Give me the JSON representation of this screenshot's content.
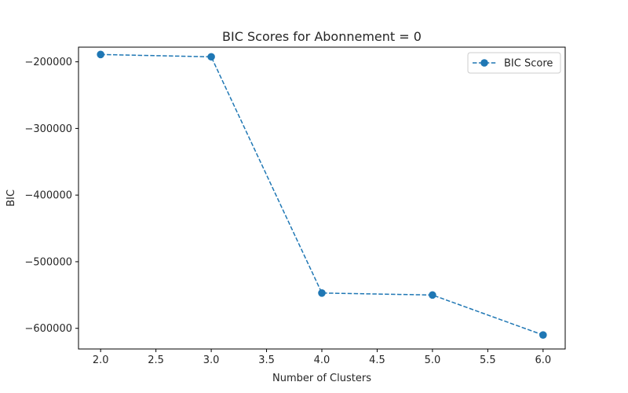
{
  "chart_data": {
    "type": "line",
    "title": "BIC Scores for Abonnement = 0",
    "xlabel": "Number of Clusters",
    "ylabel": "BIC",
    "x": [
      2.0,
      3.0,
      4.0,
      5.0,
      6.0
    ],
    "series": [
      {
        "name": "BIC Score",
        "values": [
          -189000,
          -192500,
          -547000,
          -550000,
          -610000
        ],
        "color": "#1f77b4",
        "line_style": "dashed",
        "marker": "circle"
      }
    ],
    "xlim": [
      1.8,
      6.2
    ],
    "ylim": [
      -631000,
      -178000
    ],
    "xticks": [
      2.0,
      2.5,
      3.0,
      3.5,
      4.0,
      4.5,
      5.0,
      5.5,
      6.0
    ],
    "xtick_labels": [
      "2.0",
      "2.5",
      "3.0",
      "3.5",
      "4.0",
      "4.5",
      "5.0",
      "5.5",
      "6.0"
    ],
    "yticks": [
      -200000,
      -300000,
      -400000,
      -500000,
      -600000
    ],
    "ytick_labels": [
      "−200000",
      "−300000",
      "−400000",
      "−500000",
      "−600000"
    ],
    "grid": false,
    "legend_position": "top-right"
  }
}
